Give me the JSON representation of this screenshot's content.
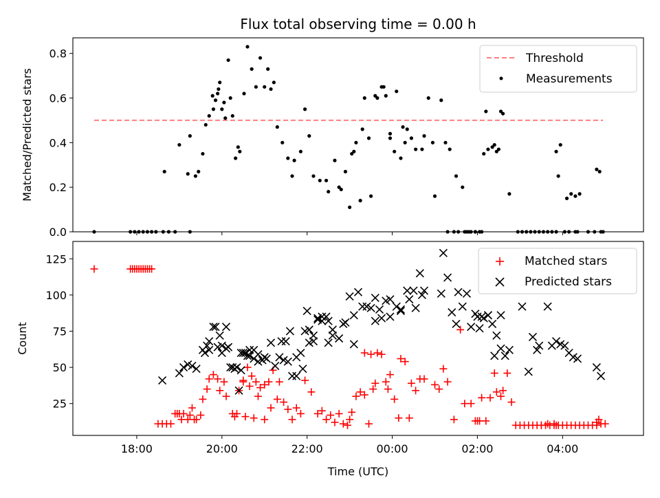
{
  "chart_data": [
    {
      "type": "scatter",
      "title": "Flux total observing time = 0.00 h",
      "xlabel": "",
      "ylabel": "Matched/Predicted stars",
      "xlim": [
        16.5,
        29.9
      ],
      "ylim": [
        0.0,
        0.87
      ],
      "yticks": [
        0.0,
        0.2,
        0.4,
        0.6,
        0.8
      ],
      "ytick_labels": [
        "0.0",
        "0.2",
        "0.4",
        "0.6",
        "0.8"
      ],
      "legend": {
        "placement": "top-right"
      },
      "threshold": {
        "name": "Threshold",
        "y": 0.5,
        "x": [
          17.0,
          28.95
        ],
        "color": "#ff7f7f"
      },
      "series": [
        {
          "name": "Measurements",
          "color": "#000000",
          "marker": "dot",
          "x": [
            17.0,
            17.85,
            17.95,
            18.05,
            18.15,
            18.25,
            18.35,
            18.45,
            18.62,
            18.75,
            18.9,
            19.25,
            18.65,
            19.0,
            19.25,
            19.38,
            19.55,
            19.62,
            19.7,
            19.78,
            19.85,
            19.92,
            20.0,
            20.08,
            20.2,
            20.32,
            20.38,
            19.2,
            19.45,
            19.8,
            19.9,
            19.95,
            20.05,
            20.15,
            20.25,
            20.42,
            20.52,
            20.6,
            20.7,
            20.8,
            20.9,
            21.0,
            21.08,
            21.15,
            21.22,
            21.3,
            21.42,
            21.55,
            21.65,
            21.7,
            21.85,
            21.95,
            22.05,
            22.15,
            22.3,
            22.45,
            22.5,
            22.65,
            22.75,
            22.9,
            23.05,
            23.15,
            23.3,
            23.45,
            23.6,
            23.75,
            23.85,
            23.95,
            24.1,
            24.2,
            24.3,
            24.45,
            24.55,
            24.7,
            24.75,
            24.85,
            24.95,
            22.8,
            23.0,
            23.1,
            23.25,
            23.35,
            23.5,
            23.65,
            23.8,
            23.95,
            24.05,
            24.25,
            24.35,
            25.0,
            25.15,
            25.25,
            25.35,
            25.5,
            25.65,
            25.75,
            25.85,
            25.95,
            26.05,
            26.15,
            26.25,
            26.4,
            26.6,
            26.2,
            26.35,
            26.45,
            26.55,
            25.3,
            25.45,
            25.55,
            25.7,
            25.8,
            25.95,
            26.1,
            26.5,
            26.75,
            26.95,
            27.05,
            27.15,
            27.25,
            27.35,
            27.45,
            27.55,
            27.65,
            27.75,
            27.85,
            27.85,
            27.95,
            28.1,
            28.2,
            28.3,
            28.4,
            28.6,
            28.75,
            28.9,
            28.95,
            27.9,
            28.05,
            28.15,
            28.3,
            28.35,
            28.8,
            28.87
          ],
          "y": [
            0.0,
            0.0,
            0.0,
            0.0,
            0.0,
            0.0,
            0.0,
            0.0,
            0.0,
            0.0,
            0.0,
            0.0,
            0.27,
            0.39,
            0.43,
            0.25,
            0.35,
            0.48,
            0.52,
            0.61,
            0.59,
            0.64,
            0.55,
            0.51,
            0.6,
            0.33,
            0.38,
            0.26,
            0.27,
            0.55,
            0.62,
            0.67,
            0.58,
            0.77,
            0.52,
            0.36,
            0.62,
            0.83,
            0.73,
            0.65,
            0.78,
            0.65,
            0.73,
            0.64,
            0.67,
            0.47,
            0.4,
            0.33,
            0.25,
            0.32,
            0.36,
            0.55,
            0.43,
            0.25,
            0.23,
            0.23,
            0.18,
            0.32,
            0.2,
            0.27,
            0.35,
            0.4,
            0.46,
            0.42,
            0.61,
            0.65,
            0.61,
            0.44,
            0.63,
            0.33,
            0.4,
            0.42,
            0.37,
            0.37,
            0.43,
            0.6,
            0.4,
            0.19,
            0.11,
            0.36,
            0.14,
            0.6,
            0.16,
            0.6,
            0.65,
            0.42,
            0.36,
            0.47,
            0.46,
            0.16,
            0.59,
            0.4,
            0.37,
            0.25,
            0.2,
            0.0,
            0.0,
            0.0,
            0.0,
            0.35,
            0.37,
            0.39,
            0.53,
            0.54,
            0.38,
            0.36,
            0.54,
            0.0,
            0.0,
            0.0,
            0.0,
            0.0,
            0.0,
            0.0,
            0.37,
            0.17,
            0.0,
            0.0,
            0.0,
            0.0,
            0.0,
            0.0,
            0.0,
            0.0,
            0.0,
            0.0,
            0.36,
            0.39,
            0.15,
            0.17,
            0.16,
            0.17,
            0.0,
            0.0,
            0.0,
            0.0,
            0.25,
            0.0,
            0.0,
            0.0,
            0.0,
            0.28,
            0.27
          ]
        }
      ]
    },
    {
      "type": "scatter",
      "title": "",
      "xlabel": "Time (UTC)",
      "ylabel": "Count",
      "xlim": [
        16.5,
        29.9
      ],
      "ylim": [
        3,
        137
      ],
      "xticks": [
        18,
        20,
        22,
        24,
        26,
        28
      ],
      "xtick_labels": [
        "18:00",
        "20:00",
        "22:00",
        "00:00",
        "02:00",
        "04:00"
      ],
      "yticks": [
        25,
        50,
        75,
        100,
        125
      ],
      "ytick_labels": [
        "25",
        "50",
        "75",
        "100",
        "125"
      ],
      "legend": {
        "placement": "top-right"
      },
      "series": [
        {
          "name": "Matched stars",
          "color": "#ff0000",
          "marker": "plus",
          "x": [
            17.0,
            17.85,
            17.9,
            17.95,
            18.0,
            18.05,
            18.1,
            18.15,
            18.2,
            18.25,
            18.3,
            18.35,
            18.5,
            18.6,
            18.7,
            18.8,
            18.9,
            19.0,
            19.1,
            19.2,
            19.3,
            19.4,
            19.5,
            18.95,
            19.05,
            19.25,
            19.35,
            19.55,
            19.65,
            19.7,
            19.8,
            19.9,
            19.95,
            20.05,
            20.1,
            20.25,
            20.3,
            20.35,
            20.5,
            20.6,
            20.7,
            20.8,
            20.9,
            21.0,
            21.1,
            21.2,
            21.3,
            20.4,
            20.5,
            20.55,
            20.65,
            20.75,
            20.85,
            21.0,
            21.15,
            21.35,
            21.45,
            21.55,
            21.65,
            21.75,
            21.85,
            21.95,
            22.1,
            22.25,
            22.35,
            22.45,
            22.55,
            22.65,
            22.75,
            22.85,
            22.95,
            23.05,
            23.15,
            23.25,
            23.35,
            23.45,
            23.55,
            23.65,
            23.75,
            23.85,
            23.95,
            24.05,
            24.15,
            24.3,
            24.45,
            24.55,
            24.65,
            24.75,
            23.0,
            23.35,
            23.5,
            23.6,
            23.9,
            24.2,
            24.4,
            25.0,
            25.1,
            25.2,
            25.3,
            25.45,
            25.6,
            25.7,
            25.85,
            25.95,
            26.05,
            26.2,
            26.3,
            26.45,
            26.55,
            26.7,
            26.8,
            26.9,
            26.0,
            26.1,
            26.4,
            26.6,
            27.0,
            27.1,
            27.2,
            27.3,
            27.4,
            27.5,
            27.6,
            27.7,
            27.8,
            27.9,
            28.0,
            28.1,
            28.2,
            28.3,
            28.4,
            28.5,
            28.6,
            28.7,
            28.8,
            28.9,
            29.0,
            27.5,
            27.65,
            27.8,
            27.85,
            28.8,
            28.85
          ],
          "y": [
            118,
            118,
            118,
            118,
            118,
            118,
            118,
            118,
            118,
            118,
            118,
            118,
            11,
            11,
            11,
            11,
            18,
            18,
            18,
            14,
            22,
            14,
            17,
            18,
            14,
            17,
            14,
            28,
            35,
            42,
            45,
            42,
            34,
            40,
            30,
            18,
            16,
            18,
            40,
            50,
            44,
            40,
            36,
            38,
            40,
            48,
            28,
            34,
            41,
            16,
            37,
            15,
            30,
            14,
            22,
            40,
            26,
            21,
            14,
            22,
            18,
            41,
            33,
            18,
            20,
            14,
            17,
            12,
            18,
            11,
            10,
            19,
            30,
            33,
            31,
            11,
            35,
            60,
            59,
            40,
            45,
            28,
            15,
            54,
            39,
            34,
            42,
            42,
            14,
            60,
            59,
            39,
            35,
            56,
            15,
            38,
            35,
            49,
            40,
            14,
            76,
            25,
            25,
            13,
            13,
            13,
            29,
            33,
            30,
            46,
            26,
            10,
            13,
            29,
            46,
            34,
            10,
            10,
            10,
            10,
            10,
            10,
            10,
            10,
            10,
            10,
            10,
            10,
            10,
            10,
            10,
            10,
            10,
            10,
            10,
            11,
            11,
            10,
            11,
            11,
            10,
            12,
            14
          ]
        },
        {
          "name": "Predicted stars",
          "color": "#000000",
          "marker": "x",
          "x": [
            18.6,
            19.0,
            19.1,
            19.2,
            19.3,
            19.4,
            19.55,
            19.65,
            19.7,
            19.8,
            19.9,
            20.0,
            20.1,
            20.2,
            20.3,
            20.4,
            20.45,
            20.55,
            20.65,
            20.75,
            20.85,
            20.95,
            21.05,
            21.15,
            21.25,
            21.35,
            21.45,
            21.55,
            21.65,
            21.75,
            21.85,
            21.95,
            22.05,
            22.15,
            22.25,
            22.35,
            19.6,
            19.7,
            19.85,
            19.95,
            20.0,
            20.1,
            20.15,
            20.25,
            20.35,
            20.45,
            20.5,
            20.6,
            20.65,
            20.75,
            20.85,
            21.0,
            21.4,
            21.5,
            21.6,
            21.75,
            21.9,
            22.0,
            22.05,
            22.15,
            22.25,
            22.35,
            22.45,
            22.5,
            22.6,
            22.75,
            22.9,
            23.0,
            23.1,
            23.2,
            23.3,
            23.4,
            23.5,
            23.6,
            23.7,
            23.85,
            23.95,
            24.1,
            24.2,
            24.35,
            24.4,
            24.55,
            24.65,
            24.75,
            22.5,
            22.85,
            22.6,
            23.1,
            23.6,
            23.75,
            23.95,
            24.2,
            24.5,
            24.7,
            25.15,
            25.2,
            25.3,
            25.4,
            25.5,
            25.55,
            25.65,
            25.75,
            25.85,
            25.95,
            26.05,
            26.15,
            26.25,
            26.35,
            26.45,
            26.55,
            26.65,
            26.75,
            26.0,
            26.1,
            26.25,
            26.4,
            26.55,
            27.05,
            27.2,
            27.3,
            27.4,
            27.45,
            27.65,
            27.75,
            27.85,
            27.95,
            28.05,
            28.15,
            28.25,
            28.35,
            28.8,
            28.9
          ],
          "y": [
            41,
            46,
            50,
            52,
            51,
            49,
            62,
            65,
            68,
            78,
            64,
            60,
            63,
            50,
            49,
            34,
            48,
            60,
            58,
            62,
            59,
            55,
            56,
            67,
            51,
            57,
            55,
            54,
            44,
            57,
            60,
            75,
            76,
            68,
            83,
            82,
            60,
            62,
            78,
            72,
            65,
            78,
            64,
            50,
            50,
            60,
            60,
            58,
            62,
            56,
            54,
            57,
            68,
            68,
            75,
            44,
            49,
            89,
            67,
            72,
            84,
            85,
            85,
            82,
            76,
            70,
            81,
            99,
            66,
            102,
            92,
            92,
            91,
            82,
            90,
            96,
            97,
            92,
            89,
            103,
            97,
            91,
            115,
            103,
            67,
            80,
            72,
            86,
            98,
            84,
            85,
            90,
            103,
            100,
            101,
            129,
            112,
            88,
            80,
            102,
            92,
            101,
            78,
            87,
            77,
            84,
            86,
            80,
            72,
            63,
            58,
            62,
            85,
            85,
            86,
            58,
            86,
            92,
            47,
            71,
            62,
            65,
            92,
            65,
            68,
            66,
            65,
            60,
            57,
            56,
            50,
            44
          ]
        }
      ]
    }
  ]
}
